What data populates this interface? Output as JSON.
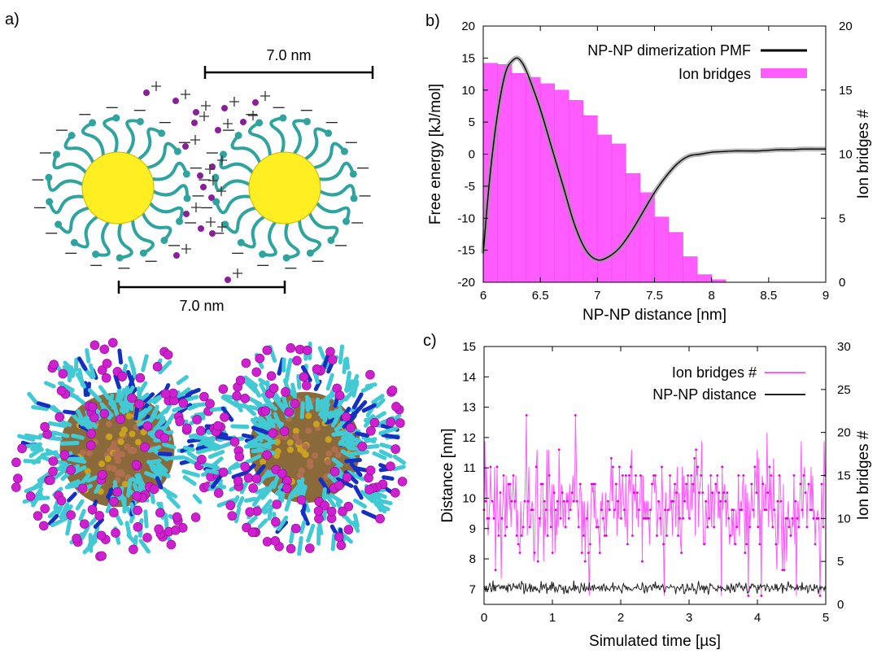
{
  "panels": {
    "a": {
      "label": "a)",
      "scale_top": "7.0 nm",
      "scale_bottom": "7.0 nm"
    },
    "b": {
      "label": "b)"
    },
    "c": {
      "label": "c)"
    }
  },
  "colors": {
    "gold": "#ffee22",
    "ligand": "#2fa49e",
    "ion": "#8b1f9b",
    "magenta": "#ff5cff",
    "pmf": "#000000",
    "cyan": "#41c9d4",
    "blue": "#1530c0"
  },
  "icons": [
    "gold-nanoparticle-icon",
    "counterion-icon",
    "molecular-render-icon"
  ],
  "chart_data": [
    {
      "type": "bar",
      "panel": "b",
      "xlabel": "NP-NP distance [nm]",
      "ylabel": "Free energy [kJ/mol]",
      "y2label": "Ion bridges #",
      "xlim": [
        6,
        9
      ],
      "ylim": [
        -20,
        20
      ],
      "y2lim": [
        0,
        20
      ],
      "xticks": [
        "6",
        "6.5",
        "7",
        "7.5",
        "8",
        "8.5",
        "9"
      ],
      "yticks": [
        "-20",
        "-15",
        "-10",
        "-5",
        "0",
        "5",
        "10",
        "15",
        "20"
      ],
      "y2ticks": [
        "0",
        "5",
        "10",
        "15",
        "20"
      ],
      "legend_position": "top-right",
      "series": [
        {
          "name": "NP-NP dimerization PMF",
          "kind": "line",
          "x": [
            6.0,
            6.05,
            6.1,
            6.15,
            6.2,
            6.25,
            6.3,
            6.35,
            6.4,
            6.5,
            6.6,
            6.7,
            6.8,
            6.9,
            7.0,
            7.1,
            7.2,
            7.3,
            7.4,
            7.5,
            7.6,
            7.7,
            7.8,
            7.9,
            8.0,
            8.1,
            8.2,
            8.3,
            8.4,
            8.5,
            8.6,
            8.7,
            8.8,
            8.9,
            9.0
          ],
          "y": [
            -15.5,
            -5,
            3,
            9,
            13,
            14.5,
            15,
            14,
            12,
            7,
            1,
            -5,
            -11,
            -15,
            -16.5,
            -16,
            -14.5,
            -12,
            -9,
            -6,
            -3.5,
            -1.5,
            -0.3,
            0,
            0.3,
            0.4,
            0.5,
            0.5,
            0.5,
            0.6,
            0.7,
            0.7,
            0.8,
            0.8,
            0.8
          ]
        },
        {
          "name": "Ion bridges",
          "kind": "bar",
          "axis": "right",
          "bin_width": 0.125,
          "x": [
            6.0,
            6.125,
            6.25,
            6.375,
            6.5,
            6.625,
            6.75,
            6.875,
            7.0,
            7.125,
            7.25,
            7.375,
            7.5,
            7.625,
            7.75,
            7.875,
            8.0,
            8.125
          ],
          "values": [
            17.1,
            17.0,
            16.3,
            16.0,
            15.5,
            15.0,
            14.2,
            13.0,
            11.5,
            10.8,
            8.5,
            7.0,
            5.1,
            3.9,
            2.0,
            0.6,
            0.2,
            0.0
          ]
        }
      ]
    },
    {
      "type": "line",
      "panel": "c",
      "xlabel": "Simulated time [µs]",
      "ylabel": "Distance [nm]",
      "y2label": "Ion bridges #",
      "xlim": [
        0,
        5
      ],
      "ylim": [
        6.5,
        15
      ],
      "y2lim": [
        0,
        30
      ],
      "xticks": [
        "0",
        "1",
        "2",
        "3",
        "4",
        "5"
      ],
      "yticks": [
        "7",
        "8",
        "9",
        "10",
        "11",
        "12",
        "13",
        "14",
        "15"
      ],
      "y2ticks": [
        "0",
        "5",
        "10",
        "15",
        "20",
        "25",
        "30"
      ],
      "legend_position": "top-right",
      "series": [
        {
          "name": "Ion bridges #",
          "axis": "right",
          "mean": 11.5,
          "spread": 4,
          "min": 0,
          "max": 22
        },
        {
          "name": "NP-NP distance",
          "axis": "left",
          "mean": 7.05,
          "spread": 0.12
        }
      ]
    }
  ]
}
